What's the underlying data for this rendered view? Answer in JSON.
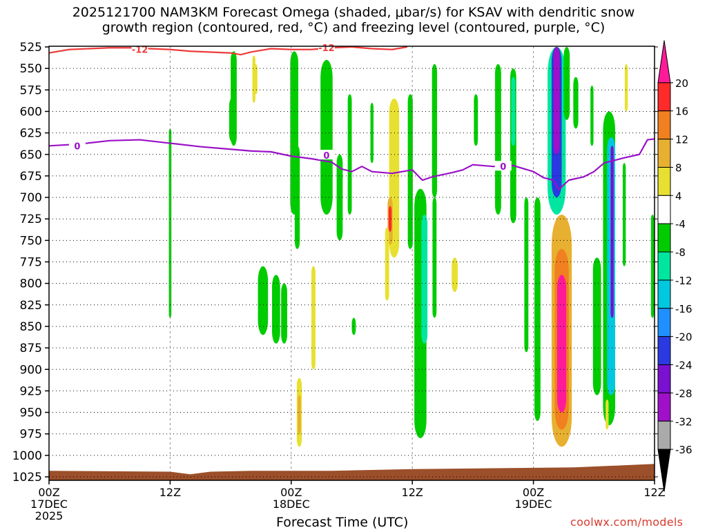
{
  "title_line1": "2025121700 NAM3KM Forecast Omega (shaded, μbar/s) for KSAV with dendritic snow",
  "title_line2": "growth region (contoured, red, °C) and freezing level (contoured, purple, °C)",
  "xlabel": "Forecast Time (UTC)",
  "credit": "coolwx.com/models",
  "chart_data": {
    "type": "heatmap",
    "title": "2025121700 NAM3KM Forecast Omega (shaded, μbar/s) for KSAV with dendritic snow growth region (contoured, red, °C) and freezing level (contoured, purple, °C)",
    "xlabel": "Forecast Time (UTC)",
    "ylabel": "",
    "y_unit": "hPa",
    "y_ticks": [
      525,
      550,
      575,
      600,
      625,
      650,
      675,
      700,
      725,
      750,
      775,
      800,
      825,
      850,
      875,
      900,
      925,
      950,
      975,
      1000,
      1025
    ],
    "ylim": [
      525,
      1025
    ],
    "x_unit": "forecast hour",
    "xlim": [
      0,
      60
    ],
    "x_ticks": [
      {
        "hour": 0,
        "label": "00Z",
        "sub": "17DEC",
        "sub2": "2025"
      },
      {
        "hour": 12,
        "label": "12Z",
        "sub": "",
        "sub2": ""
      },
      {
        "hour": 24,
        "label": "00Z",
        "sub": "18DEC",
        "sub2": ""
      },
      {
        "hour": 36,
        "label": "12Z",
        "sub": "",
        "sub2": ""
      },
      {
        "hour": 48,
        "label": "00Z",
        "sub": "19DEC",
        "sub2": ""
      },
      {
        "hour": 60,
        "label": "12Z",
        "sub": "",
        "sub2": ""
      }
    ],
    "colorbar": {
      "labels": [
        "20",
        "16",
        "12",
        "8",
        "4",
        "-4",
        "-8",
        "-12",
        "-16",
        "-20",
        "-24",
        "-28",
        "-32",
        "-36"
      ],
      "bins": [
        {
          "color": "#ff1a9a",
          "range": ">20"
        },
        {
          "color": "#ff2a2a",
          "range": "16-20"
        },
        {
          "color": "#f08020",
          "range": "12-16"
        },
        {
          "color": "#e8b030",
          "range": "8-12"
        },
        {
          "color": "#e8e030",
          "range": "4-8"
        },
        {
          "color": "#ffffff",
          "range": "-4-4"
        },
        {
          "color": "#00cc00",
          "range": "-8--4"
        },
        {
          "color": "#00e6a0",
          "range": "-12--8"
        },
        {
          "color": "#00c8e0",
          "range": "-16--12"
        },
        {
          "color": "#1e90ff",
          "range": "-20--16"
        },
        {
          "color": "#2a3ae0",
          "range": "-24--20"
        },
        {
          "color": "#7a10d0",
          "range": "-28--24"
        },
        {
          "color": "#a010c8",
          "range": "-32--28"
        },
        {
          "color": "#aaaaaa",
          "range": "-36--32"
        },
        {
          "color": "#000000",
          "range": "<-36"
        }
      ]
    },
    "omega_cells": [
      {
        "t": 12.0,
        "dt": 0.25,
        "p0": 620,
        "p1": 840,
        "v": -5
      },
      {
        "t": 18.3,
        "dt": 0.6,
        "p0": 530,
        "p1": 640,
        "v": -5
      },
      {
        "t": 18.1,
        "dt": 0.5,
        "p0": 585,
        "p1": 635,
        "v": -6
      },
      {
        "t": 20.3,
        "dt": 0.3,
        "p0": 535,
        "p1": 590,
        "v": 5
      },
      {
        "t": 20.5,
        "dt": 0.3,
        "p0": 545,
        "p1": 580,
        "v": 5
      },
      {
        "t": 21.2,
        "dt": 1.0,
        "p0": 780,
        "p1": 860,
        "v": -6
      },
      {
        "t": 22.5,
        "dt": 0.8,
        "p0": 790,
        "p1": 870,
        "v": -6
      },
      {
        "t": 23.3,
        "dt": 0.6,
        "p0": 800,
        "p1": 870,
        "v": -5
      },
      {
        "t": 24.3,
        "dt": 0.8,
        "p0": 530,
        "p1": 720,
        "v": -5
      },
      {
        "t": 24.6,
        "dt": 0.5,
        "p0": 640,
        "p1": 760,
        "v": -6
      },
      {
        "t": 24.8,
        "dt": 0.5,
        "p0": 910,
        "p1": 990,
        "v": 5
      },
      {
        "t": 24.8,
        "dt": 0.3,
        "p0": 930,
        "p1": 975,
        "v": 10
      },
      {
        "t": 26.2,
        "dt": 0.4,
        "p0": 780,
        "p1": 900,
        "v": 5
      },
      {
        "t": 27.5,
        "dt": 1.2,
        "p0": 540,
        "p1": 720,
        "v": -6
      },
      {
        "t": 28.8,
        "dt": 0.6,
        "p0": 650,
        "p1": 750,
        "v": -5
      },
      {
        "t": 29.8,
        "dt": 0.4,
        "p0": 580,
        "p1": 720,
        "v": -5
      },
      {
        "t": 30.2,
        "dt": 0.4,
        "p0": 840,
        "p1": 860,
        "v": -6
      },
      {
        "t": 32.0,
        "dt": 0.3,
        "p0": 590,
        "p1": 660,
        "v": -5
      },
      {
        "t": 34.2,
        "dt": 1.0,
        "p0": 585,
        "p1": 770,
        "v": 5
      },
      {
        "t": 33.8,
        "dt": 0.5,
        "p0": 700,
        "p1": 755,
        "v": 10
      },
      {
        "t": 33.8,
        "dt": 0.3,
        "p0": 710,
        "p1": 740,
        "v": 16
      },
      {
        "t": 33.5,
        "dt": 0.4,
        "p0": 735,
        "p1": 820,
        "v": 5
      },
      {
        "t": 35.8,
        "dt": 0.5,
        "p0": 580,
        "p1": 760,
        "v": -5
      },
      {
        "t": 36.8,
        "dt": 1.2,
        "p0": 690,
        "p1": 980,
        "v": -6
      },
      {
        "t": 37.2,
        "dt": 0.6,
        "p0": 720,
        "p1": 870,
        "v": -10
      },
      {
        "t": 38.2,
        "dt": 0.5,
        "p0": 545,
        "p1": 700,
        "v": -6
      },
      {
        "t": 38.2,
        "dt": 0.4,
        "p0": 700,
        "p1": 840,
        "v": -6
      },
      {
        "t": 40.2,
        "dt": 0.6,
        "p0": 770,
        "p1": 810,
        "v": 5
      },
      {
        "t": 42.3,
        "dt": 0.4,
        "p0": 580,
        "p1": 640,
        "v": -5
      },
      {
        "t": 44.5,
        "dt": 0.6,
        "p0": 545,
        "p1": 720,
        "v": -6
      },
      {
        "t": 46.0,
        "dt": 0.6,
        "p0": 550,
        "p1": 730,
        "v": -6
      },
      {
        "t": 46.0,
        "dt": 0.4,
        "p0": 560,
        "p1": 640,
        "v": -10
      },
      {
        "t": 47.3,
        "dt": 0.4,
        "p0": 700,
        "p1": 880,
        "v": -6
      },
      {
        "t": 48.4,
        "dt": 0.6,
        "p0": 700,
        "p1": 960,
        "v": -6
      },
      {
        "t": 50.3,
        "dt": 1.8,
        "p0": 525,
        "p1": 720,
        "v": -8
      },
      {
        "t": 50.3,
        "dt": 1.0,
        "p0": 525,
        "p1": 700,
        "v": -20
      },
      {
        "t": 50.3,
        "dt": 0.6,
        "p0": 525,
        "p1": 650,
        "v": -28
      },
      {
        "t": 51.3,
        "dt": 0.6,
        "p0": 525,
        "p1": 610,
        "v": -6
      },
      {
        "t": 52.2,
        "dt": 0.5,
        "p0": 560,
        "p1": 620,
        "v": -6
      },
      {
        "t": 50.8,
        "dt": 2.0,
        "p0": 720,
        "p1": 990,
        "v": 8
      },
      {
        "t": 50.8,
        "dt": 1.4,
        "p0": 760,
        "p1": 970,
        "v": 14
      },
      {
        "t": 50.8,
        "dt": 0.9,
        "p0": 790,
        "p1": 950,
        "v": 20
      },
      {
        "t": 53.8,
        "dt": 0.3,
        "p0": 570,
        "p1": 640,
        "v": -5
      },
      {
        "t": 54.3,
        "dt": 0.8,
        "p0": 770,
        "p1": 930,
        "v": -6
      },
      {
        "t": 55.5,
        "dt": 1.2,
        "p0": 600,
        "p1": 965,
        "v": -6
      },
      {
        "t": 55.7,
        "dt": 0.8,
        "p0": 630,
        "p1": 930,
        "v": -12
      },
      {
        "t": 55.8,
        "dt": 0.3,
        "p0": 640,
        "p1": 840,
        "v": -24
      },
      {
        "t": 55.3,
        "dt": 0.3,
        "p0": 935,
        "p1": 970,
        "v": 5
      },
      {
        "t": 57.2,
        "dt": 0.3,
        "p0": 545,
        "p1": 600,
        "v": 5
      },
      {
        "t": 57.0,
        "dt": 0.3,
        "p0": 660,
        "p1": 780,
        "v": -5
      },
      {
        "t": 59.8,
        "dt": 0.3,
        "p0": 720,
        "p1": 840,
        "v": -6
      }
    ],
    "dendritic_contour_minus12": [
      [
        0,
        532
      ],
      [
        2,
        528
      ],
      [
        4,
        527
      ],
      [
        6,
        526
      ],
      [
        8,
        526
      ],
      [
        10,
        527
      ],
      [
        12,
        528
      ],
      [
        14,
        530
      ],
      [
        16,
        531
      ],
      [
        18,
        532
      ],
      [
        19,
        534
      ],
      [
        20,
        531
      ],
      [
        22,
        527
      ],
      [
        24,
        528
      ],
      [
        26,
        528
      ],
      [
        28,
        526
      ],
      [
        30,
        525
      ],
      [
        32,
        527
      ],
      [
        34,
        528
      ],
      [
        35,
        526
      ],
      [
        35.5,
        525
      ]
    ],
    "dendritic_labels": [
      {
        "t": 9,
        "p": 528,
        "text": "-12"
      },
      {
        "t": 27.5,
        "p": 526,
        "text": "-12"
      }
    ],
    "freezing_level_0": [
      [
        0,
        640
      ],
      [
        3,
        638
      ],
      [
        6,
        634
      ],
      [
        9,
        633
      ],
      [
        12,
        637
      ],
      [
        15,
        641
      ],
      [
        18,
        644
      ],
      [
        20,
        646
      ],
      [
        22,
        647
      ],
      [
        24,
        652
      ],
      [
        26,
        655
      ],
      [
        28,
        659
      ],
      [
        29,
        667
      ],
      [
        30,
        670
      ],
      [
        31,
        664
      ],
      [
        32,
        670
      ],
      [
        34,
        672
      ],
      [
        36,
        668
      ],
      [
        37,
        680
      ],
      [
        38,
        676
      ],
      [
        40,
        671
      ],
      [
        41,
        668
      ],
      [
        42,
        662
      ],
      [
        44,
        664
      ],
      [
        46,
        663
      ],
      [
        48,
        670
      ],
      [
        49,
        677
      ],
      [
        50,
        680
      ],
      [
        50.5,
        691
      ],
      [
        51.5,
        680
      ],
      [
        53,
        676
      ],
      [
        54,
        670
      ],
      [
        55,
        660
      ],
      [
        57,
        654
      ],
      [
        58.5,
        650
      ],
      [
        59.3,
        633
      ],
      [
        60,
        632
      ]
    ],
    "freezing_labels": [
      {
        "t": 2.8,
        "p": 640,
        "text": "0"
      },
      {
        "t": 27.5,
        "p": 651,
        "text": "0"
      },
      {
        "t": 45,
        "p": 664,
        "text": "0"
      }
    ],
    "surface_pressure": [
      [
        0,
        1018
      ],
      [
        12,
        1019
      ],
      [
        14,
        1022
      ],
      [
        16,
        1019
      ],
      [
        20,
        1018
      ],
      [
        28,
        1018
      ],
      [
        36,
        1016
      ],
      [
        44,
        1015
      ],
      [
        52,
        1014
      ],
      [
        60,
        1010
      ]
    ],
    "surface_color": "#9b4f2a"
  }
}
